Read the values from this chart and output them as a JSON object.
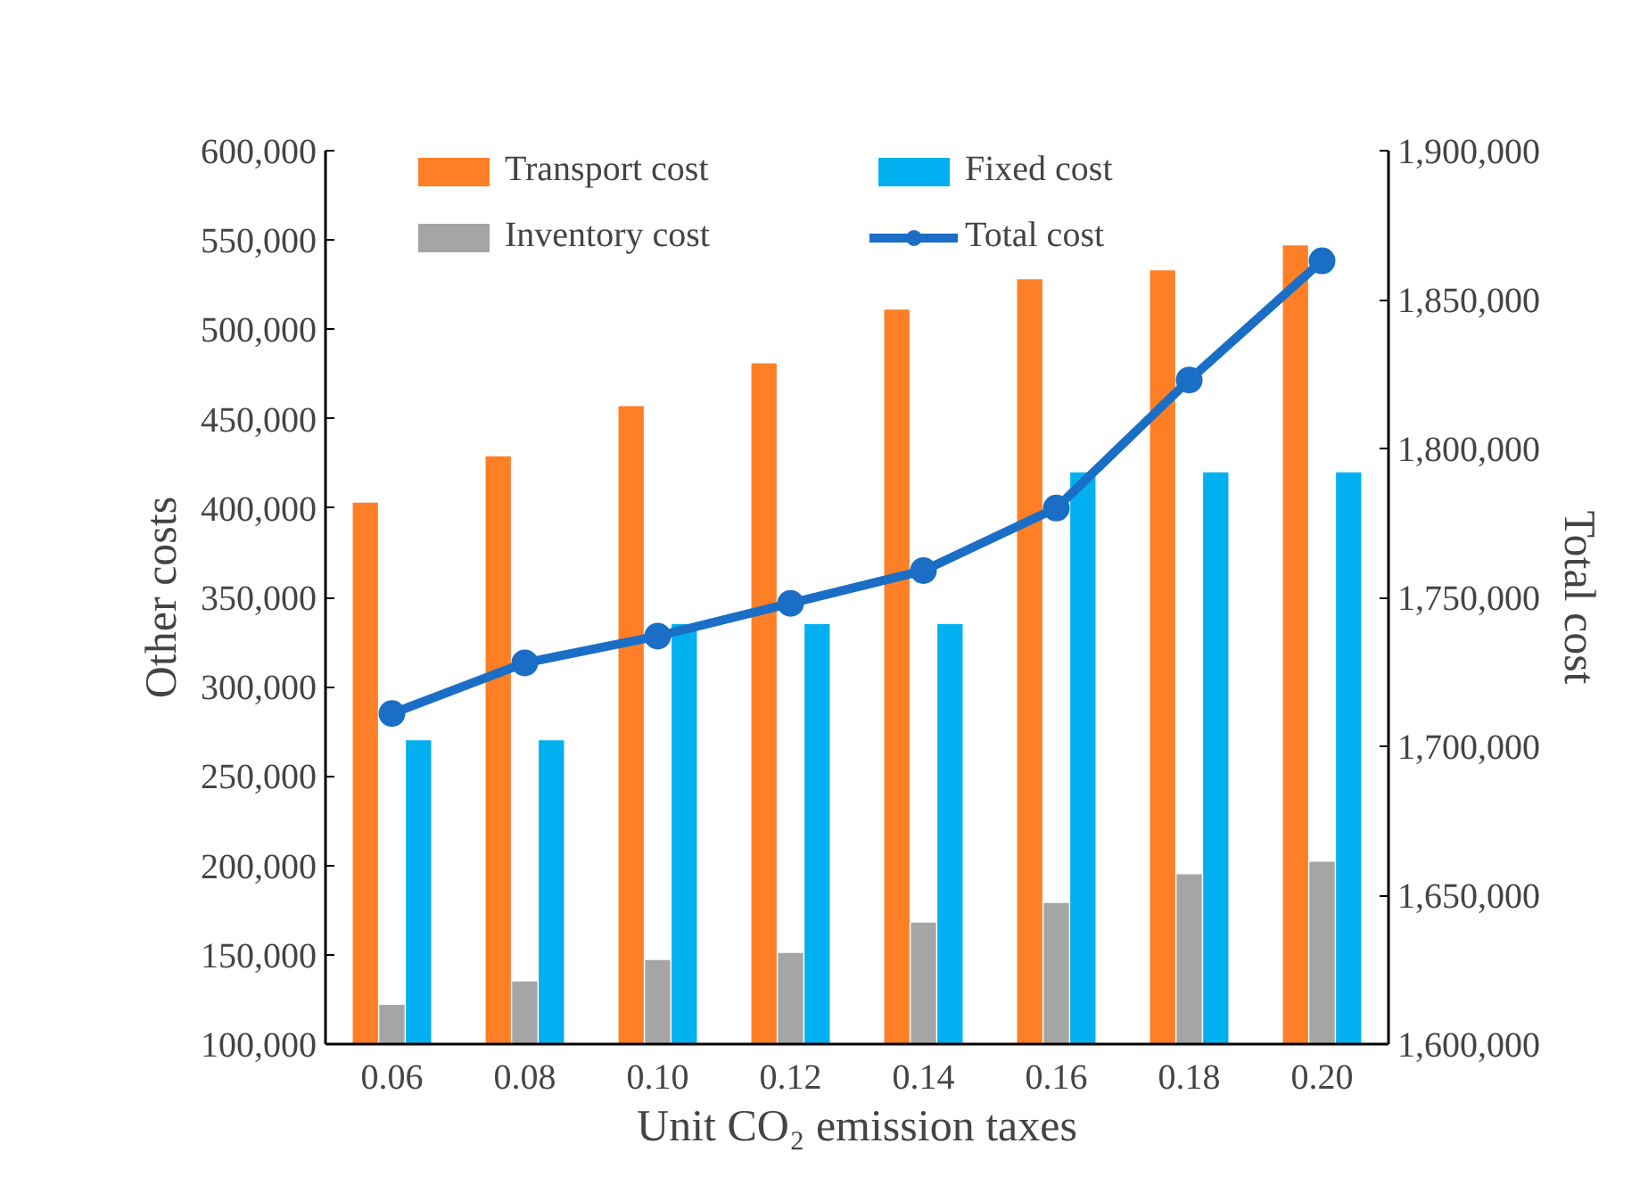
{
  "chart_data": {
    "type": "bar",
    "xlabel": "Unit CO₂ emission taxes",
    "ylabel": "Other costs",
    "y2label": "Total cost",
    "categories": [
      "0.06",
      "0.08",
      "0.10",
      "0.12",
      "0.14",
      "0.16",
      "0.18",
      "0.20"
    ],
    "series": [
      {
        "name": "Transport cost",
        "color": "#ff7f27",
        "values": [
          403000,
          429000,
          457000,
          481000,
          511000,
          528000,
          533000,
          547000
        ]
      },
      {
        "name": "Inventory cost",
        "color": "#a5a5a5",
        "values": [
          122000,
          135000,
          147000,
          151000,
          168000,
          179000,
          195000,
          202000
        ]
      },
      {
        "name": "Fixed cost",
        "color": "#00b0f0",
        "values": [
          270000,
          270000,
          335000,
          335000,
          335000,
          420000,
          420000,
          420000
        ]
      },
      {
        "name": "Total cost",
        "color": "#1b6ec6",
        "type": "line",
        "axis": "y2",
        "marker": "circle",
        "line_style": "solid",
        "values": [
          1711000,
          1728000,
          1737000,
          1748000,
          1759000,
          1780000,
          1823000,
          1863000
        ]
      }
    ],
    "ylim": [
      100000,
      600000
    ],
    "yticks": [
      {
        "value": 100000,
        "label": "100,000"
      },
      {
        "value": 150000,
        "label": "150,000"
      },
      {
        "value": 200000,
        "label": "200,000"
      },
      {
        "value": 250000,
        "label": "250,000"
      },
      {
        "value": 300000,
        "label": "300,000"
      },
      {
        "value": 350000,
        "label": "350,000"
      },
      {
        "value": 400000,
        "label": "400,000"
      },
      {
        "value": 450000,
        "label": "450,000"
      },
      {
        "value": 500000,
        "label": "500,000"
      },
      {
        "value": 550000,
        "label": "550,000"
      },
      {
        "value": 600000,
        "label": "600,000"
      }
    ],
    "y2lim": [
      1600000,
      1900000
    ],
    "y2ticks": [
      {
        "value": 1600000,
        "label": "1,600,000"
      },
      {
        "value": 1650000,
        "label": "1,650,000"
      },
      {
        "value": 1700000,
        "label": "1,700,000"
      },
      {
        "value": 1750000,
        "label": "1,750,000"
      },
      {
        "value": 1800000,
        "label": "1,800,000"
      },
      {
        "value": 1850000,
        "label": "1,850,000"
      },
      {
        "value": 1900000,
        "label": "1,900,000"
      }
    ],
    "grid": false,
    "legend": "top"
  }
}
